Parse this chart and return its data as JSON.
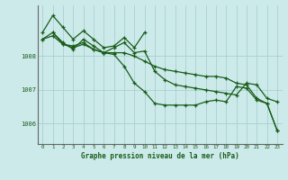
{
  "title": "Graphe pression niveau de la mer (hPa)",
  "bg_color": "#cceaea",
  "grid_color": "#aacfcf",
  "line_color": "#1a5c1a",
  "xlim": [
    -0.5,
    23.5
  ],
  "ylim": [
    1005.4,
    1009.5
  ],
  "yticks": [
    1006,
    1007,
    1008
  ],
  "xticks": [
    0,
    1,
    2,
    3,
    4,
    5,
    6,
    7,
    8,
    9,
    10,
    11,
    12,
    13,
    14,
    15,
    16,
    17,
    18,
    19,
    20,
    21,
    22,
    23
  ],
  "series": [
    {
      "x": [
        0,
        1,
        2,
        3,
        4,
        5,
        6,
        7,
        8,
        9,
        10
      ],
      "y": [
        1008.7,
        1009.2,
        1008.85,
        1008.5,
        1008.75,
        1008.5,
        1008.25,
        1008.3,
        1008.55,
        1008.25,
        1008.7
      ]
    },
    {
      "x": [
        0,
        1,
        2,
        3,
        4,
        5,
        6,
        7,
        8,
        9,
        10,
        11,
        12,
        13,
        14,
        15,
        16,
        17,
        18,
        19,
        20,
        21,
        22,
        23
      ],
      "y": [
        1008.5,
        1008.6,
        1008.35,
        1008.3,
        1008.4,
        1008.2,
        1008.1,
        1008.1,
        1008.1,
        1008.0,
        1007.85,
        1007.7,
        1007.6,
        1007.55,
        1007.5,
        1007.45,
        1007.4,
        1007.4,
        1007.35,
        1007.2,
        1007.15,
        1006.75,
        1006.6,
        1005.8
      ]
    },
    {
      "x": [
        0,
        1,
        2,
        3,
        4,
        5,
        6,
        7,
        8,
        9,
        10,
        11,
        12,
        13,
        14,
        15,
        16,
        17,
        18,
        19,
        20,
        21,
        22,
        23
      ],
      "y": [
        1008.5,
        1008.7,
        1008.35,
        1008.25,
        1008.35,
        1008.2,
        1008.1,
        1008.05,
        1007.7,
        1007.2,
        1006.95,
        1006.6,
        1006.55,
        1006.55,
        1006.55,
        1006.55,
        1006.65,
        1006.7,
        1006.65,
        1007.1,
        1007.05,
        1006.7,
        1006.6,
        1005.8
      ]
    },
    {
      "x": [
        1,
        2,
        3,
        4,
        5,
        6,
        7,
        8,
        9,
        10,
        11,
        12,
        13,
        14,
        15,
        16,
        17,
        18,
        19,
        20,
        21,
        22,
        23
      ],
      "y": [
        1008.7,
        1008.4,
        1008.2,
        1008.5,
        1008.3,
        1008.1,
        1008.25,
        1008.4,
        1008.1,
        1008.15,
        1007.55,
        1007.3,
        1007.15,
        1007.1,
        1007.05,
        1007.0,
        1006.95,
        1006.9,
        1006.85,
        1007.2,
        1007.15,
        1006.75,
        1006.65
      ]
    }
  ]
}
